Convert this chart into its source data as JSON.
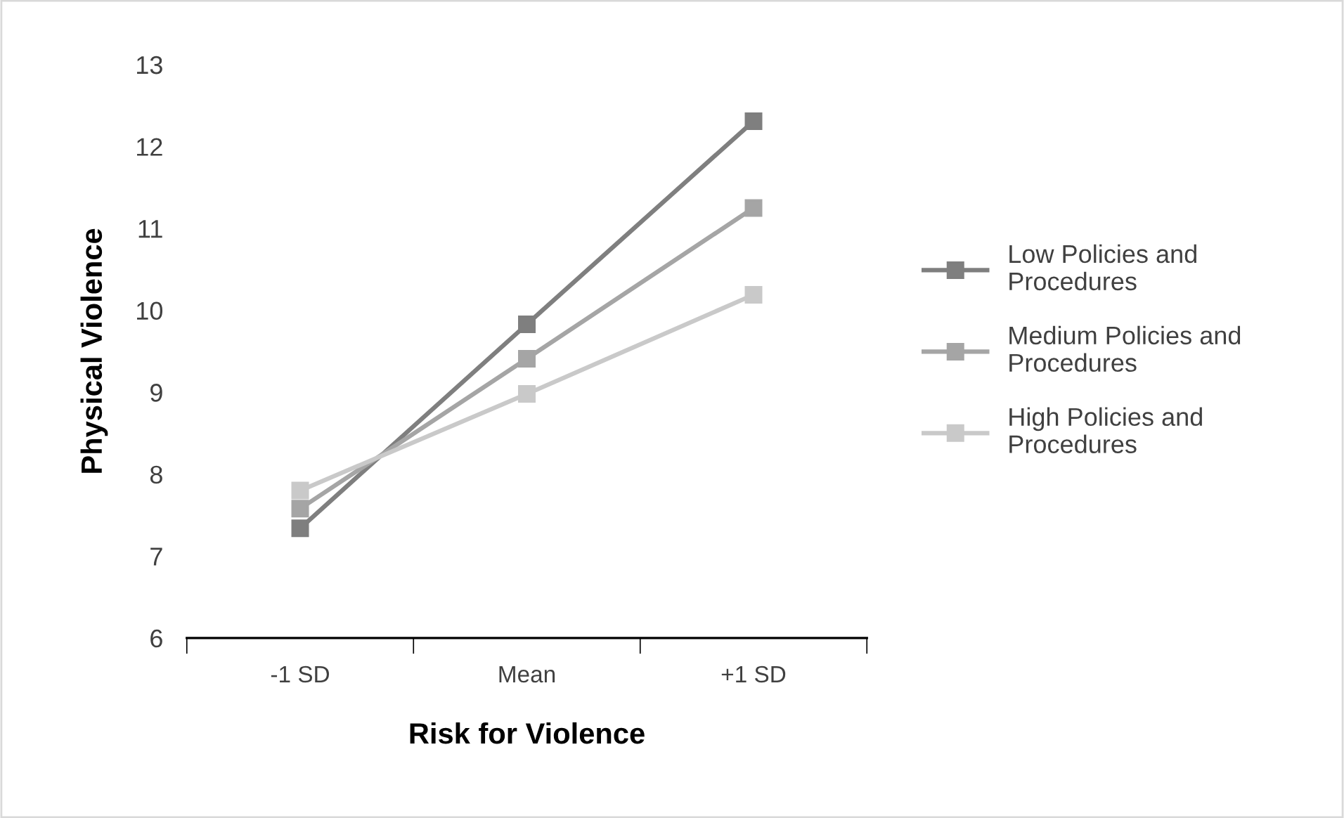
{
  "chart_data": {
    "type": "line",
    "xlabel": "Risk for Violence",
    "ylabel": "Physical Violence",
    "categories": [
      "-1 SD",
      "Mean",
      "+1 SD"
    ],
    "series": [
      {
        "name": "Low Policies and Procedures",
        "color": "#7f7f7f",
        "values": [
          7.34,
          9.83,
          12.31
        ]
      },
      {
        "name": "Medium Policies and Procedures",
        "color": "#a5a5a5",
        "values": [
          7.58,
          9.41,
          11.25
        ]
      },
      {
        "name": "High Policies and Procedures",
        "color": "#c9c9c9",
        "values": [
          7.8,
          8.98,
          10.19
        ]
      }
    ],
    "ylim": [
      6,
      13
    ],
    "yticks": [
      6,
      7,
      8,
      9,
      10,
      11,
      12,
      13
    ],
    "grid": false,
    "legend": "right",
    "marker": "square",
    "line_style": "solid"
  }
}
